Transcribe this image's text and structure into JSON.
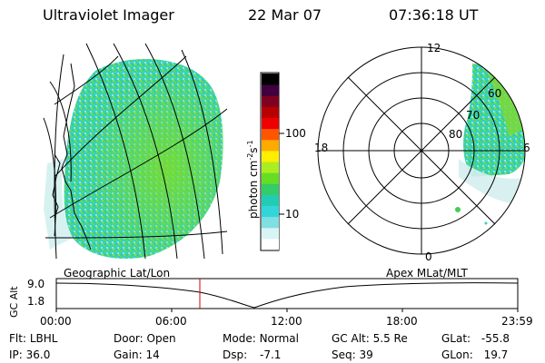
{
  "header": {
    "instrument": "Ultraviolet Imager",
    "date": "22 Mar 07",
    "time": "07:36:18 UT"
  },
  "colorbar": {
    "label": "photon cm",
    "label_sup1": "-2",
    "label_mid": "s",
    "label_sup2": "-1",
    "ticks": [
      "100",
      "10"
    ],
    "log_scale": true,
    "colors": [
      "#ffffff",
      "#d9f4f4",
      "#80dfe0",
      "#33d6d8",
      "#22ccb4",
      "#33cc66",
      "#66dd22",
      "#aaee22",
      "#ffee00",
      "#ffaa00",
      "#ff5500",
      "#ee0000",
      "#b80000",
      "#800020",
      "#400040",
      "#000000"
    ]
  },
  "polar": {
    "labels": {
      "top": "12",
      "left": "18",
      "right": "6",
      "bottom": "0"
    },
    "rings": [
      "60",
      "70",
      "80"
    ]
  },
  "maps": {
    "left_caption": "Geographic Lat/Lon",
    "right_caption": "Apex MLat/MLT"
  },
  "altitude_plot": {
    "ylabel": "GC Alt",
    "yticks": [
      "9.0",
      "1.8"
    ],
    "xticks": [
      "00:00",
      "06:00",
      "12:00",
      "18:00",
      "23:59"
    ],
    "marker_time": "07:36"
  },
  "info": {
    "flt_label": "Flt:",
    "flt_value": "LBHL",
    "ip_label": "IP:",
    "ip_value": "36.0",
    "door_label": "Door:",
    "door_value": "Open",
    "gain_label": "Gain:",
    "gain_value": "14",
    "mode_label": "Mode:",
    "mode_value": "Normal",
    "dsp_label": "Dsp:",
    "dsp_value": "-7.1",
    "gcalt_label": "GC Alt:",
    "gcalt_value": "5.5 Re",
    "seq_label": "Seq:",
    "seq_value": "39",
    "glat_label": "GLat:",
    "glat_value": "-55.8",
    "glon_label": "GLon:",
    "glon_value": "19.7"
  }
}
